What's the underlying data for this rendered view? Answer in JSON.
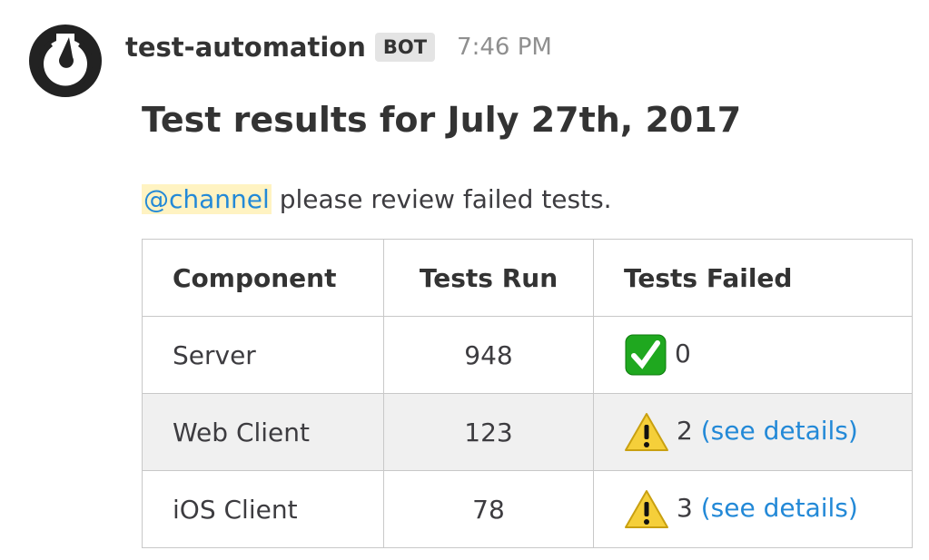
{
  "post": {
    "username": "test-automation",
    "badge": "BOT",
    "time": "7:46 PM",
    "title": "Test results for July 27th, 2017",
    "mention": "@channel",
    "message": " please review failed tests."
  },
  "table": {
    "headers": [
      "Component",
      "Tests Run",
      "Tests Failed"
    ],
    "rows": [
      {
        "component": "Server",
        "run": "948",
        "icon": "check-mark-icon",
        "failed": "0",
        "link": ""
      },
      {
        "component": "Web Client",
        "run": "123",
        "icon": "warning-icon",
        "failed": "2",
        "link": "(see details)"
      },
      {
        "component": "iOS Client",
        "run": "78",
        "icon": "warning-icon",
        "failed": "3",
        "link": "(see details)"
      }
    ]
  },
  "colors": {
    "link": "#2389d7",
    "mention_bg": "#fff3c2",
    "alt_row": "#f0f0f0"
  }
}
